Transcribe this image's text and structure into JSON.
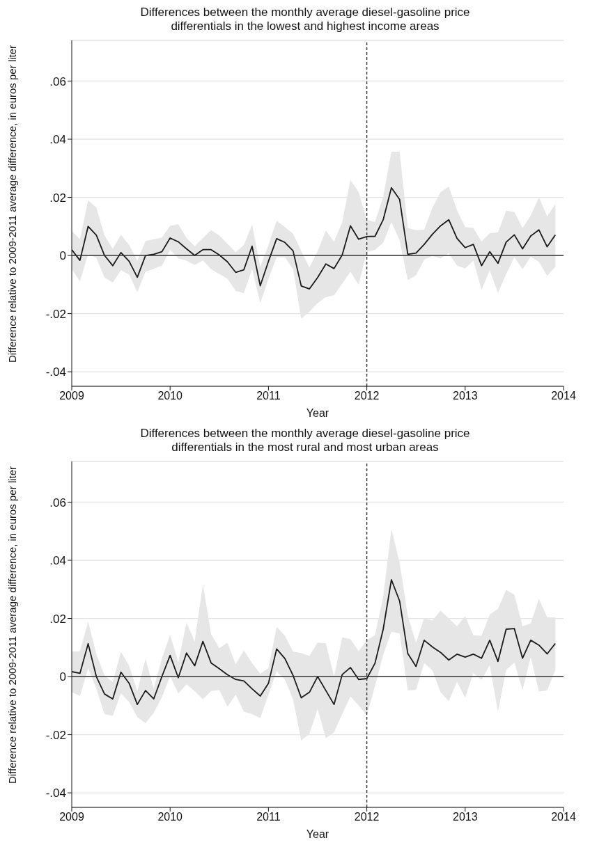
{
  "chart_data": [
    {
      "type": "line",
      "title": "Differences between the monthly average diesel-gasoline price differentials in the lowest and highest income areas",
      "xlabel": "Year",
      "ylabel": "Difference relative to 2009-2011 average difference, in euros per liter",
      "x": [
        "2009-01",
        "2009-02",
        "2009-03",
        "2009-04",
        "2009-05",
        "2009-06",
        "2009-07",
        "2009-08",
        "2009-09",
        "2009-10",
        "2009-11",
        "2009-12",
        "2010-01",
        "2010-02",
        "2010-03",
        "2010-04",
        "2010-05",
        "2010-06",
        "2010-07",
        "2010-08",
        "2010-09",
        "2010-10",
        "2010-11",
        "2010-12",
        "2011-01",
        "2011-02",
        "2011-03",
        "2011-04",
        "2011-05",
        "2011-06",
        "2011-07",
        "2011-08",
        "2011-09",
        "2011-10",
        "2011-11",
        "2011-12",
        "2012-01",
        "2012-02",
        "2012-03",
        "2012-04",
        "2012-05",
        "2012-06",
        "2012-07",
        "2012-08",
        "2012-09",
        "2012-10",
        "2012-11",
        "2012-12",
        "2013-01",
        "2013-02",
        "2013-03",
        "2013-04",
        "2013-05",
        "2013-06",
        "2013-07",
        "2013-08",
        "2013-09",
        "2013-10",
        "2013-11",
        "2013-12"
      ],
      "series": [
        {
          "color": "#1a1a1a",
          "values": [
            0.002,
            -0.0017,
            0.01,
            0.007,
            0.0,
            -0.0035,
            0.001,
            -0.002,
            -0.0075,
            0.0,
            0.0004,
            0.0013,
            0.006,
            0.0047,
            0.0023,
            0.0,
            0.002,
            0.002,
            0.0002,
            -0.0022,
            -0.0058,
            -0.0049,
            0.0032,
            -0.0104,
            -0.002,
            0.0058,
            0.0045,
            0.0016,
            -0.0105,
            -0.0115,
            -0.0076,
            -0.0029,
            -0.0045,
            0.0002,
            0.0102,
            0.0056,
            0.0065,
            0.0066,
            0.0123,
            0.0233,
            0.0193,
            0.0004,
            0.0008,
            0.0038,
            0.0073,
            0.0102,
            0.0123,
            0.0059,
            0.0027,
            0.0038,
            -0.0035,
            0.0013,
            -0.0027,
            0.0046,
            0.0071,
            0.0023,
            0.0067,
            0.0088,
            0.003,
            0.0071
          ],
          "lower": [
            -0.0046,
            -0.0089,
            0.0005,
            -0.0008,
            -0.0076,
            -0.0093,
            -0.0051,
            -0.0066,
            -0.0126,
            -0.0056,
            -0.0046,
            -0.0035,
            0.0019,
            -0.001,
            -0.0018,
            -0.0033,
            -0.0017,
            -0.0047,
            -0.0064,
            -0.008,
            -0.0122,
            -0.013,
            -0.0046,
            -0.0164,
            -0.008,
            -0.0006,
            -0.0006,
            -0.0047,
            -0.0218,
            -0.0193,
            -0.0164,
            -0.0143,
            -0.0137,
            -0.0097,
            -0.0056,
            -0.0101,
            0.0012,
            0.0019,
            0.0044,
            0.0115,
            0.0052,
            -0.0085,
            -0.0068,
            -0.0014,
            -0.0002,
            -0.001,
            0.0008,
            -0.0035,
            -0.0045,
            -0.0018,
            -0.0118,
            -0.0051,
            -0.0129,
            -0.0064,
            -0.0006,
            -0.0047,
            -0.0004,
            -0.0022,
            -0.007,
            -0.0039
          ],
          "upper": [
            0.0085,
            0.0056,
            0.019,
            0.0165,
            0.0069,
            0.0023,
            0.0071,
            0.0036,
            -0.0018,
            0.005,
            0.0056,
            0.0062,
            0.0102,
            0.0108,
            0.006,
            0.0032,
            0.006,
            0.0087,
            0.0069,
            0.004,
            0.0011,
            0.0036,
            0.0106,
            -0.0039,
            0.0036,
            0.012,
            0.0098,
            0.0075,
            0.0015,
            -0.0042,
            0.0015,
            0.0085,
            0.0048,
            0.0115,
            0.026,
            0.0218,
            0.0123,
            0.0115,
            0.0202,
            0.0357,
            0.0357,
            0.0095,
            0.0087,
            0.0089,
            0.0164,
            0.0218,
            0.0237,
            0.0156,
            0.0098,
            0.0095,
            0.0048,
            0.0077,
            0.0079,
            0.0154,
            0.015,
            0.0095,
            0.0137,
            0.02,
            0.0135,
            0.0177
          ]
        }
      ],
      "xlim": [
        "2009-01",
        "2014-01"
      ],
      "xticks": [
        {
          "value": "2009-01",
          "label": "2009"
        },
        {
          "value": "2010-01",
          "label": "2010"
        },
        {
          "value": "2011-01",
          "label": "2011"
        },
        {
          "value": "2012-01",
          "label": "2012"
        },
        {
          "value": "2013-01",
          "label": "2013"
        },
        {
          "value": "2014-01",
          "label": "2014"
        }
      ],
      "ylim": [
        -0.045,
        0.074
      ],
      "yticks": [
        {
          "value": -0.04,
          "label": "-.04"
        },
        {
          "value": -0.02,
          "label": "-.02"
        },
        0,
        {
          "value": 0.02,
          "label": ".02"
        },
        {
          "value": 0.04,
          "label": ".04"
        },
        {
          "value": 0.06,
          "label": ".06"
        }
      ],
      "grid": "y",
      "marker": "none",
      "legend": false,
      "ref_lines": [
        {
          "axis": "y",
          "value": 0,
          "color": "#333333",
          "line_style": "solid"
        },
        {
          "axis": "x",
          "value": "2012-01",
          "color": "#333333",
          "line_style": "dashed"
        }
      ]
    },
    {
      "type": "line",
      "title": "Differences between the monthly average diesel-gasoline price differentials in the most rural and most urban areas",
      "xlabel": "Year",
      "ylabel": "Difference relative to 2009-2011 average difference, in euros per liter",
      "x": [
        "2009-01",
        "2009-02",
        "2009-03",
        "2009-04",
        "2009-05",
        "2009-06",
        "2009-07",
        "2009-08",
        "2009-09",
        "2009-10",
        "2009-11",
        "2009-12",
        "2010-01",
        "2010-02",
        "2010-03",
        "2010-04",
        "2010-05",
        "2010-06",
        "2010-07",
        "2010-08",
        "2010-09",
        "2010-10",
        "2010-11",
        "2010-12",
        "2011-01",
        "2011-02",
        "2011-03",
        "2011-04",
        "2011-05",
        "2011-06",
        "2011-07",
        "2011-08",
        "2011-09",
        "2011-10",
        "2011-11",
        "2011-12",
        "2012-01",
        "2012-02",
        "2012-03",
        "2012-04",
        "2012-05",
        "2012-06",
        "2012-07",
        "2012-08",
        "2012-09",
        "2012-10",
        "2012-11",
        "2012-12",
        "2013-01",
        "2013-02",
        "2013-03",
        "2013-04",
        "2013-05",
        "2013-06",
        "2013-07",
        "2013-08",
        "2013-09",
        "2013-10",
        "2013-11",
        "2013-12"
      ],
      "series": [
        {
          "color": "#1a1a1a",
          "values": [
            0.0017,
            0.0011,
            0.0113,
            0.0,
            -0.006,
            -0.0077,
            0.0015,
            -0.0023,
            -0.0096,
            -0.0048,
            -0.0077,
            0.0,
            0.0073,
            -0.0004,
            0.0081,
            0.0037,
            0.0121,
            0.0047,
            0.0027,
            0.0006,
            -0.001,
            -0.0015,
            -0.0042,
            -0.0067,
            -0.0023,
            0.0095,
            0.0062,
            0.0004,
            -0.0073,
            -0.0054,
            0.0,
            -0.0048,
            -0.0096,
            0.0007,
            0.0031,
            -0.001,
            -0.0007,
            0.0046,
            0.0163,
            0.0333,
            0.026,
            0.0079,
            0.0035,
            0.0125,
            0.0102,
            0.0083,
            0.0057,
            0.0077,
            0.0067,
            0.0077,
            0.0063,
            0.0125,
            0.0052,
            0.0163,
            0.0165,
            0.0063,
            0.0125,
            0.0108,
            0.0078,
            0.0114
          ],
          "lower": [
            -0.0054,
            -0.0067,
            0.0029,
            -0.0042,
            -0.0129,
            -0.0135,
            -0.0058,
            -0.0087,
            -0.014,
            -0.016,
            -0.0125,
            -0.0071,
            0.0,
            -0.0058,
            -0.0027,
            -0.005,
            -0.0078,
            -0.005,
            -0.0046,
            -0.0104,
            -0.0062,
            -0.0121,
            -0.0129,
            -0.0143,
            -0.0062,
            0.0018,
            -0.001,
            -0.0079,
            -0.0221,
            -0.0196,
            -0.0112,
            -0.0212,
            -0.0192,
            -0.0129,
            -0.0068,
            -0.01,
            -0.0133,
            -0.0033,
            0.0075,
            0.0154,
            0.0148,
            -0.0048,
            -0.0046,
            0.0046,
            0.0021,
            -0.0054,
            -0.0085,
            -0.0018,
            -0.0073,
            0.0012,
            -0.0012,
            0.0039,
            -0.0121,
            0.0023,
            0.0048,
            -0.0046,
            0.0068,
            -0.0052,
            -0.0048,
            0.0023
          ],
          "upper": [
            0.0086,
            0.0087,
            0.0189,
            0.0077,
            0.0004,
            -0.0019,
            0.0085,
            0.0037,
            -0.005,
            0.0061,
            -0.0042,
            0.0062,
            0.0143,
            0.005,
            0.0185,
            0.0121,
            0.0318,
            0.0146,
            0.0098,
            0.0117,
            0.0042,
            0.009,
            0.0046,
            0.001,
            0.0029,
            0.0171,
            0.0141,
            0.0086,
            0.0081,
            0.0071,
            0.0117,
            0.0115,
            0.0,
            0.0135,
            0.0129,
            0.0087,
            0.0125,
            0.0142,
            0.0275,
            0.0508,
            0.0392,
            0.0208,
            0.0117,
            0.0202,
            0.0193,
            0.0227,
            0.02,
            0.0173,
            0.0208,
            0.0142,
            0.014,
            0.0213,
            0.0233,
            0.0298,
            0.0282,
            0.0173,
            0.0183,
            0.0267,
            0.0204,
            0.0203
          ]
        }
      ],
      "xlim": [
        "2009-01",
        "2014-01"
      ],
      "xticks": [
        {
          "value": "2009-01",
          "label": "2009"
        },
        {
          "value": "2010-01",
          "label": "2010"
        },
        {
          "value": "2011-01",
          "label": "2011"
        },
        {
          "value": "2012-01",
          "label": "2012"
        },
        {
          "value": "2013-01",
          "label": "2013"
        },
        {
          "value": "2014-01",
          "label": "2014"
        }
      ],
      "ylim": [
        -0.045,
        0.074
      ],
      "yticks": [
        {
          "value": -0.04,
          "label": "-.04"
        },
        {
          "value": -0.02,
          "label": "-.02"
        },
        0,
        {
          "value": 0.02,
          "label": ".02"
        },
        {
          "value": 0.04,
          "label": ".04"
        },
        {
          "value": 0.06,
          "label": ".06"
        }
      ],
      "grid": "y",
      "marker": "none",
      "legend": false,
      "ref_lines": [
        {
          "axis": "y",
          "value": 0,
          "color": "#333333",
          "line_style": "solid"
        },
        {
          "axis": "x",
          "value": "2012-01",
          "color": "#333333",
          "line_style": "dashed"
        }
      ]
    }
  ]
}
